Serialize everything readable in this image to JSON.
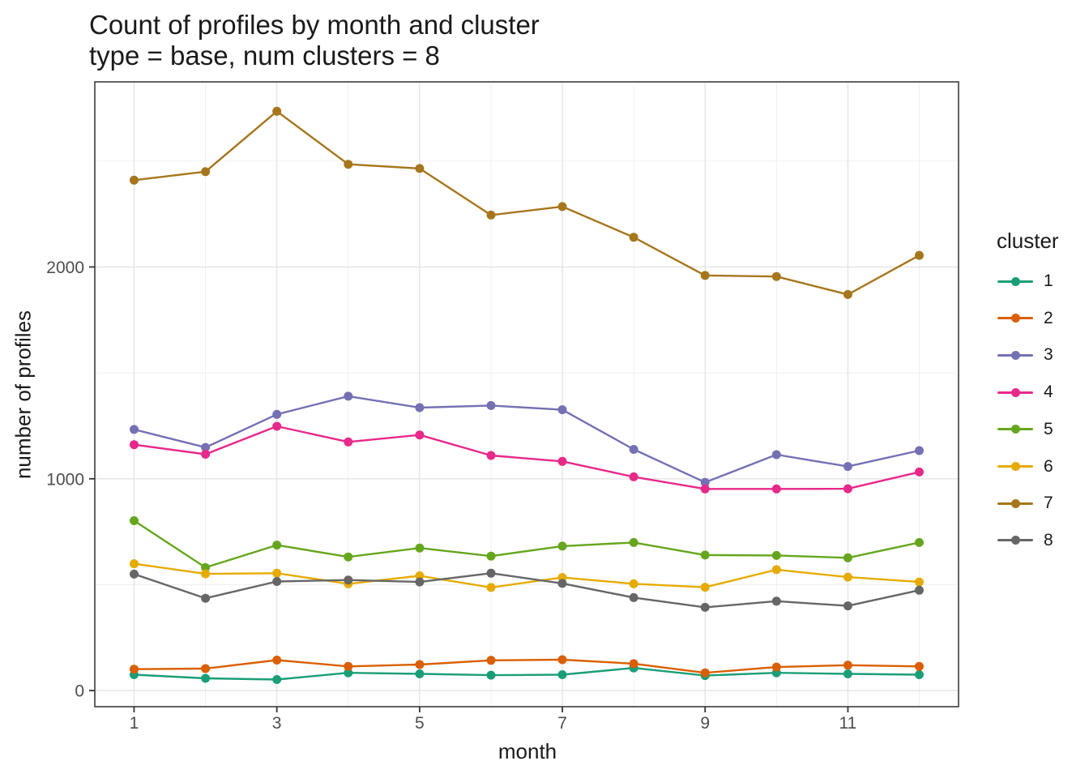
{
  "title": "Count of profiles by month and cluster",
  "subtitle": "type = base, num clusters = 8",
  "axes": {
    "x": {
      "label": "month",
      "tick_labels": [
        "1",
        "3",
        "5",
        "7",
        "9",
        "11"
      ],
      "tick_values": [
        1,
        3,
        5,
        7,
        9,
        11
      ]
    },
    "y": {
      "label": "number of profiles",
      "tick_labels": [
        "0",
        "1000",
        "2000"
      ],
      "tick_values": [
        0,
        1000,
        2000
      ]
    }
  },
  "legend": {
    "title": "cluster",
    "entries": [
      {
        "label": "1",
        "color": "#1B9E77"
      },
      {
        "label": "2",
        "color": "#D95F02"
      },
      {
        "label": "3",
        "color": "#7570B3"
      },
      {
        "label": "4",
        "color": "#E7298A"
      },
      {
        "label": "5",
        "color": "#66A61E"
      },
      {
        "label": "6",
        "color": "#E6AB02"
      },
      {
        "label": "7",
        "color": "#A6761D"
      },
      {
        "label": "8",
        "color": "#666666"
      }
    ]
  },
  "style_colors": {
    "grid_major": "#e4e4e4",
    "grid_minor": "#f0f0f0",
    "panel_border": "#3c3c3c",
    "tick_mark": "#333333",
    "tick_label": "#4d4d4d"
  },
  "chart_data": {
    "type": "line",
    "title": "Count of profiles by month and cluster",
    "subtitle": "type = base, num clusters = 8",
    "xlabel": "month",
    "ylabel": "number of profiles",
    "x": [
      1,
      2,
      3,
      4,
      5,
      6,
      7,
      8,
      9,
      10,
      11,
      12
    ],
    "series": [
      {
        "name": "1",
        "color": "#1B9E77",
        "values": [
          75,
          58,
          52,
          84,
          79,
          73,
          75,
          107,
          71,
          84,
          79,
          75
        ]
      },
      {
        "name": "2",
        "color": "#D95F02",
        "values": [
          101,
          104,
          144,
          114,
          123,
          143,
          146,
          127,
          84,
          111,
          120,
          114
        ]
      },
      {
        "name": "3",
        "color": "#7570B3",
        "values": [
          1233,
          1148,
          1304,
          1390,
          1336,
          1346,
          1326,
          1139,
          983,
          1114,
          1058,
          1133
        ]
      },
      {
        "name": "4",
        "color": "#E7298A",
        "values": [
          1161,
          1116,
          1248,
          1174,
          1207,
          1110,
          1082,
          1009,
          952,
          952,
          953,
          1032
        ]
      },
      {
        "name": "5",
        "color": "#66A61E",
        "values": [
          802,
          581,
          687,
          631,
          673,
          635,
          682,
          699,
          640,
          638,
          627,
          699
        ]
      },
      {
        "name": "6",
        "color": "#E6AB02",
        "values": [
          599,
          551,
          554,
          504,
          542,
          487,
          534,
          504,
          488,
          571,
          536,
          513
        ]
      },
      {
        "name": "7",
        "color": "#A6761D",
        "values": [
          2410,
          2450,
          2735,
          2485,
          2465,
          2245,
          2285,
          2140,
          1960,
          1955,
          1870,
          2055
        ]
      },
      {
        "name": "8",
        "color": "#666666",
        "values": [
          550,
          436,
          515,
          522,
          513,
          554,
          506,
          439,
          393,
          422,
          400,
          474
        ]
      }
    ],
    "xlim": [
      0.45,
      12.55
    ],
    "ylim": [
      -76,
      2874
    ],
    "x_major_gridlines": [
      1,
      3,
      5,
      7,
      9,
      11
    ],
    "x_minor_gridlines": [
      2,
      4,
      6,
      8,
      10,
      12
    ],
    "y_major_gridlines": [
      0,
      1000,
      2000
    ],
    "y_minor_gridlines": [
      500,
      1500,
      2500
    ],
    "grid": true,
    "legend_position": "right",
    "legend_title": "cluster"
  }
}
